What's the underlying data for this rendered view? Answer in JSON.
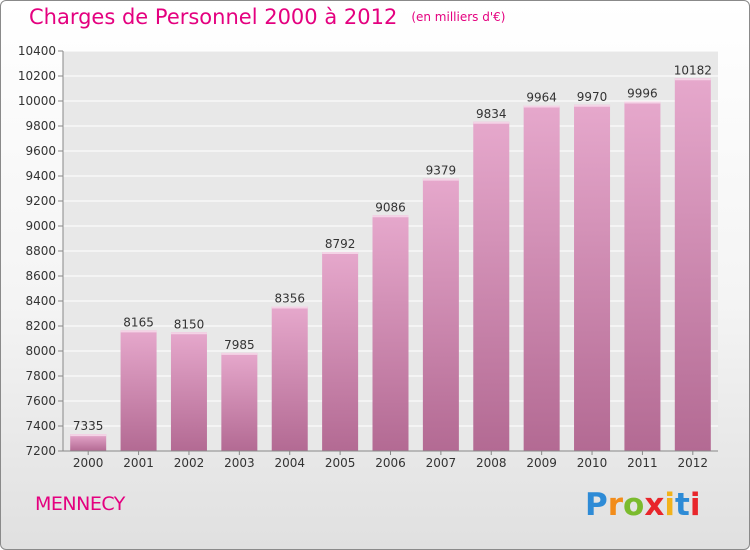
{
  "header": {
    "title": "Charges de Personnel 2000 à 2012",
    "subtitle": "(en milliers d'€)"
  },
  "footer": {
    "commune": "MENNECY",
    "logo_letters": [
      "P",
      "r",
      "o",
      "x",
      "i",
      "t",
      "i"
    ],
    "logo_colors": [
      "#2e8bd6",
      "#f28c1a",
      "#7bbb2e",
      "#e8262b",
      "#f2b21a",
      "#2e8bd6",
      "#e8262b"
    ]
  },
  "chart_data": {
    "type": "bar",
    "categories": [
      "2000",
      "2001",
      "2002",
      "2003",
      "2004",
      "2005",
      "2006",
      "2007",
      "2008",
      "2009",
      "2010",
      "2011",
      "2012"
    ],
    "values": [
      7335,
      8165,
      8150,
      7985,
      8356,
      8792,
      9086,
      9379,
      9834,
      9964,
      9970,
      9996,
      10182
    ],
    "data_labels": [
      "7335",
      "8165",
      "8150",
      "7985",
      "8356",
      "8792",
      "9086",
      "9379",
      "9834",
      "9964",
      "9970",
      "9996",
      "10182"
    ],
    "yticks": [
      7200,
      7400,
      7600,
      7800,
      8000,
      8200,
      8400,
      8600,
      8800,
      9000,
      9200,
      9400,
      9600,
      9800,
      10000,
      10200,
      10400
    ],
    "ylim": [
      7200,
      10400
    ],
    "grid": true,
    "bar_color": "#d98bb6",
    "bar_color_light": "#e6a8cc",
    "bar_color_dark": "#b36a93",
    "title": "Charges de Personnel 2000 à 2012",
    "xlabel": "",
    "ylabel": ""
  }
}
